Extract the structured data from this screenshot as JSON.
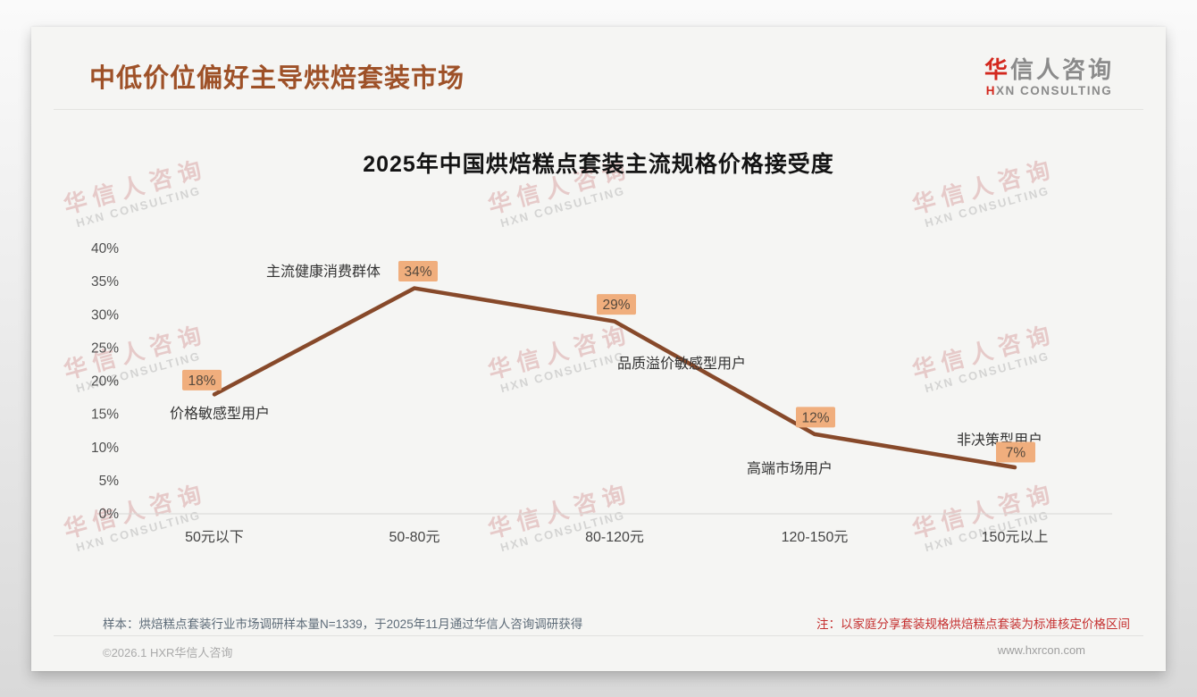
{
  "header": {
    "title": "中低价位偏好主导烘焙套装市场",
    "logo": {
      "cn_accent": "华",
      "cn_rest": "信人咨询",
      "en_accent": "H",
      "en_rest": "XN CONSULTING"
    }
  },
  "watermark": {
    "line1": "华信人咨询",
    "line2": "HXN CONSULTING"
  },
  "notes": {
    "sample": "样本：烘焙糕点套装行业市场调研样本量N=1339，于2025年11月通过华信人咨询调研获得",
    "standard": "注：以家庭分享套装规格烘焙糕点套装为标准核定价格区间"
  },
  "footer": {
    "copyright": "©2026.1 HXR华信人咨询",
    "website": "www.hxrcon.com"
  },
  "chart_data": {
    "type": "line",
    "title": "2025年中国烘焙糕点套装主流规格价格接受度",
    "categories": [
      "50元以下",
      "50-80元",
      "80-120元",
      "120-150元",
      "150元以上"
    ],
    "values": [
      18,
      34,
      29,
      12,
      7
    ],
    "value_labels": [
      "18%",
      "34%",
      "29%",
      "12%",
      "7%"
    ],
    "point_annotations": [
      "价格敏感型用户",
      "主流健康消费群体",
      "品质溢价敏感型用户",
      "高端市场用户",
      "非决策型用户"
    ],
    "xlabel": "",
    "ylabel": "",
    "ylim": [
      0,
      40
    ],
    "yticks": [
      0,
      5,
      10,
      15,
      20,
      25,
      30,
      35,
      40
    ],
    "ytick_labels": [
      "0%",
      "5%",
      "10%",
      "15%",
      "20%",
      "25%",
      "30%",
      "35%",
      "40%"
    ],
    "grid": false,
    "legend": "none",
    "line_color": "#87492a",
    "badge_color": "#f0ae7d",
    "badge_text_color": "#55493d",
    "baseline_color": "#d8d8d5"
  }
}
